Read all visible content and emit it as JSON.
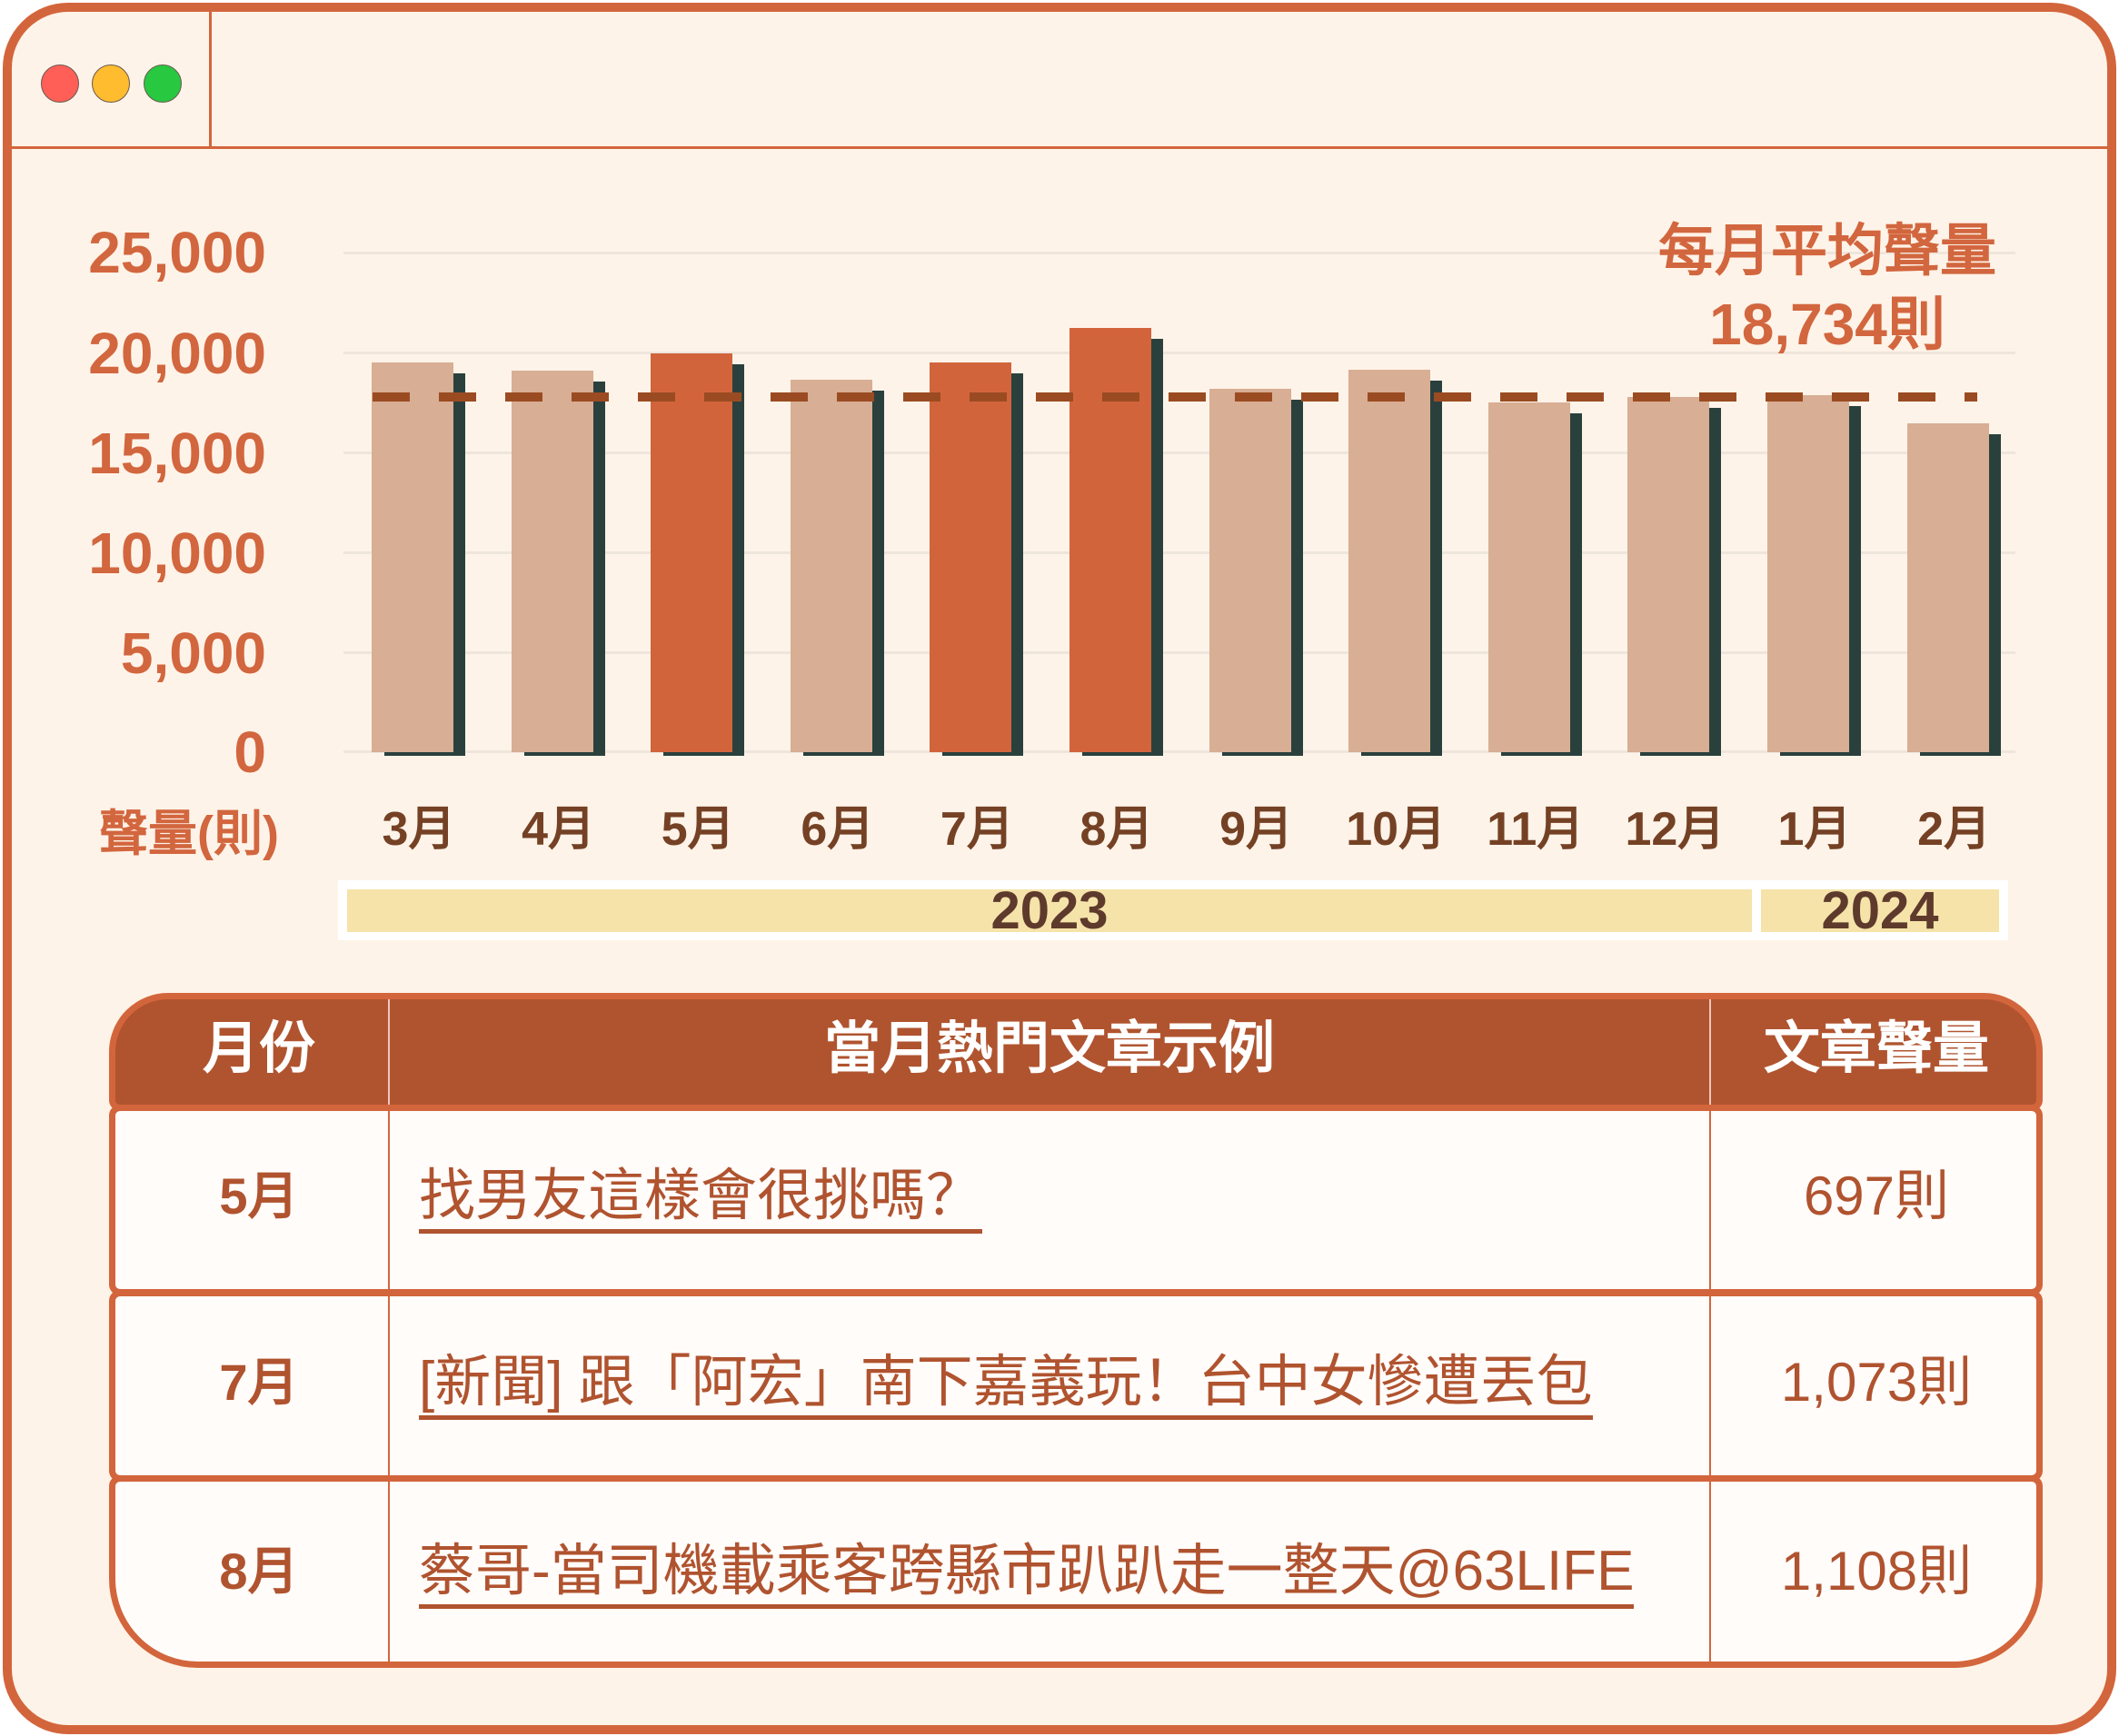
{
  "window": {
    "controls": [
      {
        "name": "close",
        "color": "#FF5F57"
      },
      {
        "name": "minimize",
        "color": "#FEBC2E"
      },
      {
        "name": "maximize",
        "color": "#28C840"
      }
    ]
  },
  "chart": {
    "y_ticks": [
      "25,000",
      "20,000",
      "15,000",
      "10,000",
      "5,000",
      "0"
    ],
    "y_unit": "聲量(則)",
    "avg_label": "每月平均聲量",
    "avg_value": "18,734則",
    "years": [
      "2023",
      "2024"
    ]
  },
  "chart_data": {
    "type": "bar",
    "title": "",
    "categories": [
      "3月",
      "4月",
      "5月",
      "6月",
      "7月",
      "8月",
      "9月",
      "10月",
      "11月",
      "12月",
      "1月",
      "2月"
    ],
    "values": [
      19500,
      19090,
      19950,
      18640,
      19500,
      21230,
      18180,
      19140,
      17500,
      17770,
      17860,
      16450
    ],
    "highlight": [
      "5月",
      "7月",
      "8月"
    ],
    "xlabel": "",
    "ylabel": "聲量(則)",
    "ylim": [
      0,
      25000
    ],
    "yticks": [
      0,
      5000,
      10000,
      15000,
      20000,
      25000
    ],
    "grid": true,
    "legend": null,
    "group_labels": [
      {
        "label": "2023",
        "span": [
          "3月",
          "12月"
        ]
      },
      {
        "label": "2024",
        "span": [
          "1月",
          "2月"
        ]
      }
    ],
    "reference_line": {
      "label": "每月平均聲量",
      "value": 18734,
      "unit": "則",
      "style": "dashed"
    }
  },
  "table": {
    "headers": [
      "月份",
      "當月熱門文章示例",
      "文章聲量"
    ],
    "rows": [
      {
        "month": "5月",
        "title": "找男友這樣會很挑嗎？",
        "count": "697則"
      },
      {
        "month": "7月",
        "title": "[新聞] 跟「阿宏」南下嘉義玩！台中女慘遭丟包",
        "count": "1,073則"
      },
      {
        "month": "8月",
        "title": "蔡哥-當司機載乘客跨縣市趴趴走一整天@63LIFE",
        "count": "1,108則"
      }
    ]
  },
  "colors": {
    "frame": "#D3653C",
    "background": "#FEF3E8",
    "bar_default": "#D8AE94",
    "bar_highlight": "#D2643C",
    "bar_shadow": "#2A403D",
    "avg_line": "#9B4B22",
    "accent_text": "#D2663E",
    "month_label": "#744125",
    "year_band": "#F5E3AA",
    "year_text": "#5E3A2C",
    "table_header": "#B0542F",
    "table_text": "#B0532F"
  }
}
